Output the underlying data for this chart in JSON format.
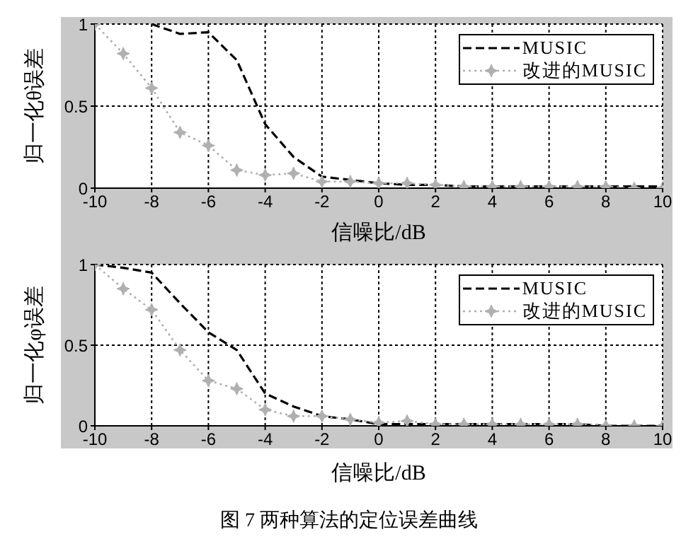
{
  "chart_data": [
    {
      "type": "line",
      "xlabel": "信噪比/dB",
      "ylabel": "归一化θ误差",
      "x": [
        -10,
        -9,
        -8,
        -7,
        -6,
        -5,
        -4,
        -3,
        -2,
        -1,
        0,
        1,
        2,
        3,
        4,
        5,
        6,
        7,
        8,
        9,
        10
      ],
      "xlim": [
        -10,
        10
      ],
      "xticks": [
        -10,
        -8,
        -6,
        -4,
        -2,
        0,
        2,
        4,
        6,
        8,
        10
      ],
      "ylim": [
        0,
        1
      ],
      "yticks": [
        0,
        0.5,
        1
      ],
      "grid": true,
      "legend": "top right",
      "series": [
        {
          "name": "MUSIC",
          "color": "#000000",
          "line_style": "dashed",
          "marker": "none",
          "values": [
            null,
            null,
            1,
            0.94,
            0.95,
            0.78,
            0.39,
            0.19,
            0.07,
            0.05,
            0.03,
            0.02,
            0.02,
            0.01,
            0.01,
            0.01,
            0.01,
            0.01,
            0.01,
            0.01,
            0.01
          ]
        },
        {
          "name": "改进的MUSIC",
          "color": "#b0b0b0",
          "line_style": "dotted",
          "marker": "star",
          "values": [
            1,
            0.82,
            0.61,
            0.34,
            0.26,
            0.11,
            0.08,
            0.09,
            0.04,
            0.04,
            0.03,
            0.03,
            0.02,
            0.01,
            0.01,
            0.01,
            0.01,
            0.01,
            0.01,
            0,
            0
          ]
        }
      ]
    },
    {
      "type": "line",
      "xlabel": "信噪比/dB",
      "ylabel": "归一化φ误差",
      "x": [
        -10,
        -9,
        -8,
        -7,
        -6,
        -5,
        -4,
        -3,
        -2,
        -1,
        0,
        1,
        2,
        3,
        4,
        5,
        6,
        7,
        8,
        9,
        10
      ],
      "xlim": [
        -10,
        10
      ],
      "xticks": [
        -10,
        -8,
        -6,
        -4,
        -2,
        0,
        2,
        4,
        6,
        8,
        10
      ],
      "ylim": [
        0,
        1
      ],
      "yticks": [
        0,
        0.5,
        1
      ],
      "grid": true,
      "legend": "top right",
      "series": [
        {
          "name": "MUSIC",
          "color": "#000000",
          "line_style": "dashed",
          "marker": "none",
          "values": [
            1,
            0.98,
            0.95,
            0.76,
            0.58,
            0.47,
            0.2,
            0.12,
            0.06,
            0.04,
            0.01,
            0.01,
            0.01,
            0.01,
            0.01,
            0.01,
            0.01,
            0.01,
            0,
            0,
            0
          ]
        },
        {
          "name": "改进的MUSIC",
          "color": "#b0b0b0",
          "line_style": "dotted",
          "marker": "star",
          "values": [
            1,
            0.85,
            0.72,
            0.47,
            0.28,
            0.23,
            0.1,
            0.06,
            0.06,
            0.04,
            0.02,
            0.03,
            0.01,
            0.01,
            0.01,
            0.01,
            0.01,
            0.01,
            0,
            0,
            0
          ]
        }
      ],
      "annotations": [
        "图 7 两种算法的定位误差曲线"
      ]
    }
  ]
}
